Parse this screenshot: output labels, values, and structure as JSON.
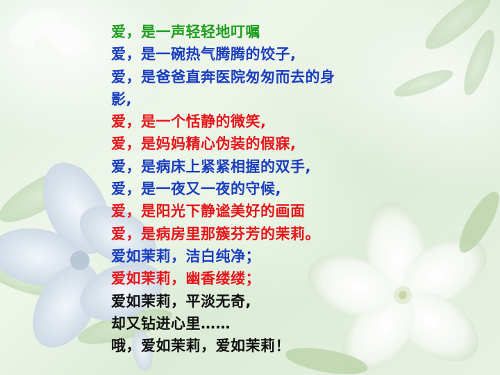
{
  "colors": {
    "green": "#1f9e1f",
    "blue": "#1a3dbf",
    "red": "#e8141a",
    "black": "#111111"
  },
  "background": {
    "image": "jasmine-flowers",
    "description_colors": [
      "#dfeede",
      "#ffffff"
    ]
  },
  "poem": {
    "lines": [
      {
        "text": "爱，是一声轻轻地叮嘱",
        "color": "green"
      },
      {
        "text": "爱，是一碗热气腾腾的饺子,",
        "color": "blue"
      },
      {
        "text": "爱，是爸爸直奔医院匆匆而去的身",
        "color": "blue"
      },
      {
        "text": "影,",
        "color": "blue"
      },
      {
        "text": "爱，是一个恬静的微笑,",
        "color": "red"
      },
      {
        "text": "爱，是妈妈精心伪装的假寐,",
        "color": "red"
      },
      {
        "text": "爱，是病床上紧紧相握的双手,",
        "color": "blue"
      },
      {
        "text": "爱，是一夜又一夜的守候,",
        "color": "blue"
      },
      {
        "text": "爱，是阳光下静谧美好的画面",
        "color": "red"
      },
      {
        "text": "爱，是病房里那簇芬芳的茉莉。",
        "color": "red"
      },
      {
        "text": "爱如茉莉，洁白纯净；",
        "color": "blue"
      },
      {
        "text": "爱如茉莉，幽香缕缕；",
        "color": "red"
      },
      {
        "text": "爱如茉莉，平淡无奇,",
        "color": "black"
      },
      {
        "text": "却又钻进心里……",
        "color": "black"
      },
      {
        "text": "哦，爱如茉莉，爱如茉莉！",
        "color": "black"
      }
    ]
  }
}
